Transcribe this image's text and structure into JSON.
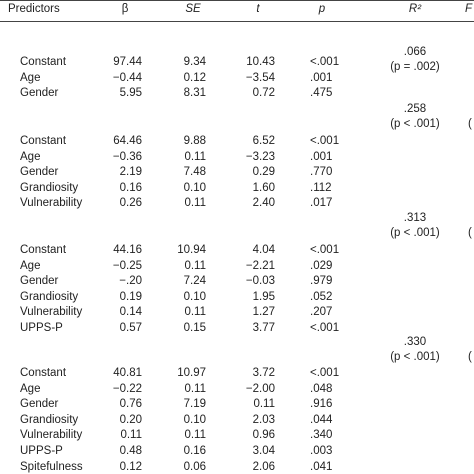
{
  "table": {
    "header": [
      "Predictors",
      "β",
      "SE",
      "t",
      "p",
      "R²",
      "F"
    ],
    "blocks": [
      {
        "r2": ".066",
        "r2_p": "(p = .002)",
        "f_cut": null,
        "rows": [
          [
            "Constant",
            "97.44",
            "9.34",
            "10.43",
            "<.001"
          ],
          [
            "Age",
            "−0.44",
            "0.12",
            "−3.54",
            ".001"
          ],
          [
            "Gender",
            "5.95",
            "8.31",
            "0.72",
            ".475"
          ]
        ]
      },
      {
        "r2": ".258",
        "r2_p": "(p < .001)",
        "f_cut": "(",
        "rows": [
          [
            "Constant",
            "64.46",
            "9.88",
            "6.52",
            "<.001"
          ],
          [
            "Age",
            "−0.36",
            "0.11",
            "−3.23",
            ".001"
          ],
          [
            "Gender",
            "2.19",
            "7.48",
            "0.29",
            ".770"
          ],
          [
            "Grandiosity",
            "0.16",
            "0.10",
            "1.60",
            ".112"
          ],
          [
            "Vulnerability",
            "0.26",
            "0.11",
            "2.40",
            ".017"
          ]
        ]
      },
      {
        "r2": ".313",
        "r2_p": "(p < .001)",
        "f_cut": "(",
        "rows": [
          [
            "Constant",
            "44.16",
            "10.94",
            "4.04",
            "<.001"
          ],
          [
            "Age",
            "−0.25",
            "0.11",
            "−2.21",
            ".029"
          ],
          [
            "Gender",
            "−.20",
            "7.24",
            "−0.03",
            ".979"
          ],
          [
            "Grandiosity",
            "0.19",
            "0.10",
            "1.95",
            ".052"
          ],
          [
            "Vulnerability",
            "0.14",
            "0.11",
            "1.27",
            ".207"
          ],
          [
            "UPPS-P",
            "0.57",
            "0.15",
            "3.77",
            "<.001"
          ]
        ]
      },
      {
        "r2": ".330",
        "r2_p": "(p < .001)",
        "f_cut": "(",
        "rows": [
          [
            "Constant",
            "40.81",
            "10.97",
            "3.72",
            "<.001"
          ],
          [
            "Age",
            "−0.22",
            "0.11",
            "−2.00",
            ".048"
          ],
          [
            "Gender",
            "0.76",
            "7.19",
            "0.11",
            ".916"
          ],
          [
            "Grandiosity",
            "0.20",
            "0.10",
            "2.03",
            ".044"
          ],
          [
            "Vulnerability",
            "0.11",
            "0.11",
            "0.96",
            ".340"
          ],
          [
            "UPPS-P",
            "0.48",
            "0.16",
            "3.04",
            ".003"
          ],
          [
            "Spitefulness",
            "0.12",
            "0.06",
            "2.06",
            ".041"
          ]
        ]
      }
    ]
  }
}
